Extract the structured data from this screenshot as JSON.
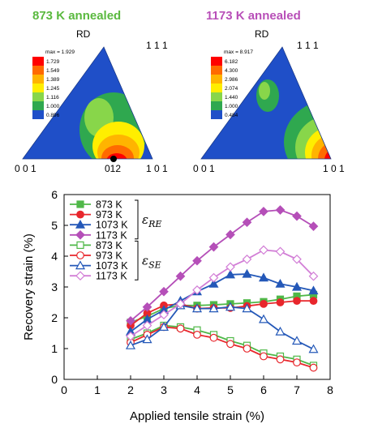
{
  "top_panels": [
    {
      "title": "873 K annealed",
      "title_color": "#5ab93f",
      "direction": "RD",
      "corner_labels": [
        "0 0 1",
        "1 0 1",
        "1 1 1"
      ],
      "extra_label": "012",
      "max_label": "max = 1.929",
      "colorbar_values": [
        "1.729",
        "1.549",
        "1.389",
        "1.245",
        "1.116",
        "1.000",
        "0.896"
      ],
      "colors": [
        "#ff0000",
        "#ff6a00",
        "#ffb400",
        "#ffee00",
        "#88d64a",
        "#2fa84f",
        "#1f4fc8"
      ]
    },
    {
      "title": "1173 K annealed",
      "title_color": "#b84fb8",
      "direction": "RD",
      "corner_labels": [
        "0 0 1",
        "1 0 1",
        "1 1 1"
      ],
      "max_label": "max = 8.917",
      "colorbar_values": [
        "6.182",
        "4.300",
        "2.986",
        "2.074",
        "1.440",
        "1.000",
        "0.484"
      ],
      "colors": [
        "#ff0000",
        "#ff6a00",
        "#ffb400",
        "#ffee00",
        "#88d64a",
        "#2fa84f",
        "#1f4fc8"
      ]
    }
  ],
  "chart_data": {
    "type": "line",
    "xlabel": "Applied tensile strain (%)",
    "ylabel": "Recovery strain (%)",
    "xlim": [
      0,
      8
    ],
    "ylim": [
      0,
      6
    ],
    "xticks": [
      "0",
      "1",
      "2",
      "3",
      "4",
      "5",
      "6",
      "7",
      "8"
    ],
    "yticks": [
      "0",
      "1",
      "2",
      "3",
      "4",
      "5",
      "6"
    ],
    "grid": false,
    "legend_position": "top-left",
    "legend_groups": [
      {
        "symbol": "ε_RE",
        "sub": "RE",
        "main": "ε"
      },
      {
        "symbol": "ε_SE",
        "sub": "SE",
        "main": "ε"
      }
    ],
    "series": [
      {
        "name": "873 K",
        "group": "RE",
        "color": "#4fb848",
        "marker": "square",
        "filled": true,
        "x": [
          2,
          2.5,
          3,
          3.5,
          4,
          4.5,
          5,
          5.5,
          6,
          6.5,
          7,
          7.5
        ],
        "y": [
          1.85,
          2.05,
          2.3,
          2.4,
          2.4,
          2.42,
          2.45,
          2.48,
          2.52,
          2.6,
          2.7,
          2.75
        ]
      },
      {
        "name": "973 K",
        "group": "RE",
        "color": "#e8262c",
        "marker": "circle",
        "filled": true,
        "x": [
          2,
          2.5,
          3,
          3.5,
          4,
          4.5,
          5,
          5.5,
          6,
          6.5,
          7,
          7.5
        ],
        "y": [
          1.75,
          2.15,
          2.4,
          2.45,
          2.3,
          2.32,
          2.32,
          2.38,
          2.45,
          2.5,
          2.55,
          2.55
        ]
      },
      {
        "name": "1073 K",
        "group": "RE",
        "color": "#2458b8",
        "marker": "triangle",
        "filled": true,
        "x": [
          2,
          2.5,
          3,
          3.5,
          4,
          4.5,
          5,
          5.5,
          6,
          6.5,
          7,
          7.5
        ],
        "y": [
          1.55,
          1.95,
          2.25,
          2.55,
          2.85,
          3.1,
          3.4,
          3.42,
          3.3,
          3.1,
          3.0,
          2.88
        ]
      },
      {
        "name": "1173 K",
        "group": "RE",
        "color": "#b54fb8",
        "marker": "diamond",
        "filled": true,
        "x": [
          2,
          2.5,
          3,
          3.5,
          4,
          4.5,
          5,
          5.5,
          6,
          6.5,
          7,
          7.5
        ],
        "y": [
          1.9,
          2.35,
          2.85,
          3.35,
          3.85,
          4.3,
          4.7,
          5.1,
          5.45,
          5.5,
          5.3,
          4.97
        ]
      },
      {
        "name": "873 K",
        "group": "SE",
        "color": "#4fb848",
        "marker": "square",
        "filled": false,
        "x": [
          2,
          2.5,
          3,
          3.5,
          4,
          4.5,
          5,
          5.5,
          6,
          6.5,
          7,
          7.5
        ],
        "y": [
          1.3,
          1.5,
          1.75,
          1.7,
          1.6,
          1.45,
          1.25,
          1.1,
          0.85,
          0.75,
          0.65,
          0.45
        ]
      },
      {
        "name": "973 K",
        "group": "SE",
        "color": "#e8262c",
        "marker": "circle",
        "filled": false,
        "x": [
          2,
          2.5,
          3,
          3.5,
          4,
          4.5,
          5,
          5.5,
          6,
          6.5,
          7,
          7.5
        ],
        "y": [
          1.2,
          1.45,
          1.7,
          1.65,
          1.45,
          1.35,
          1.15,
          1.0,
          0.75,
          0.65,
          0.55,
          0.38
        ]
      },
      {
        "name": "1073 K",
        "group": "SE",
        "color": "#2458b8",
        "marker": "triangle",
        "filled": false,
        "x": [
          2,
          2.5,
          3,
          3.5,
          4,
          4.5,
          5,
          5.5,
          6,
          6.5,
          7,
          7.5
        ],
        "y": [
          1.1,
          1.3,
          1.7,
          2.4,
          2.3,
          2.3,
          2.35,
          2.3,
          1.95,
          1.55,
          1.25,
          0.98
        ]
      },
      {
        "name": "1173 K",
        "group": "SE",
        "color": "#d27ed6",
        "marker": "diamond",
        "filled": false,
        "x": [
          2,
          2.5,
          3,
          3.5,
          4,
          4.5,
          5,
          5.5,
          6,
          6.5,
          7,
          7.5
        ],
        "y": [
          1.4,
          1.75,
          2.1,
          2.45,
          2.9,
          3.3,
          3.65,
          3.9,
          4.2,
          4.15,
          3.9,
          3.35
        ]
      }
    ]
  }
}
